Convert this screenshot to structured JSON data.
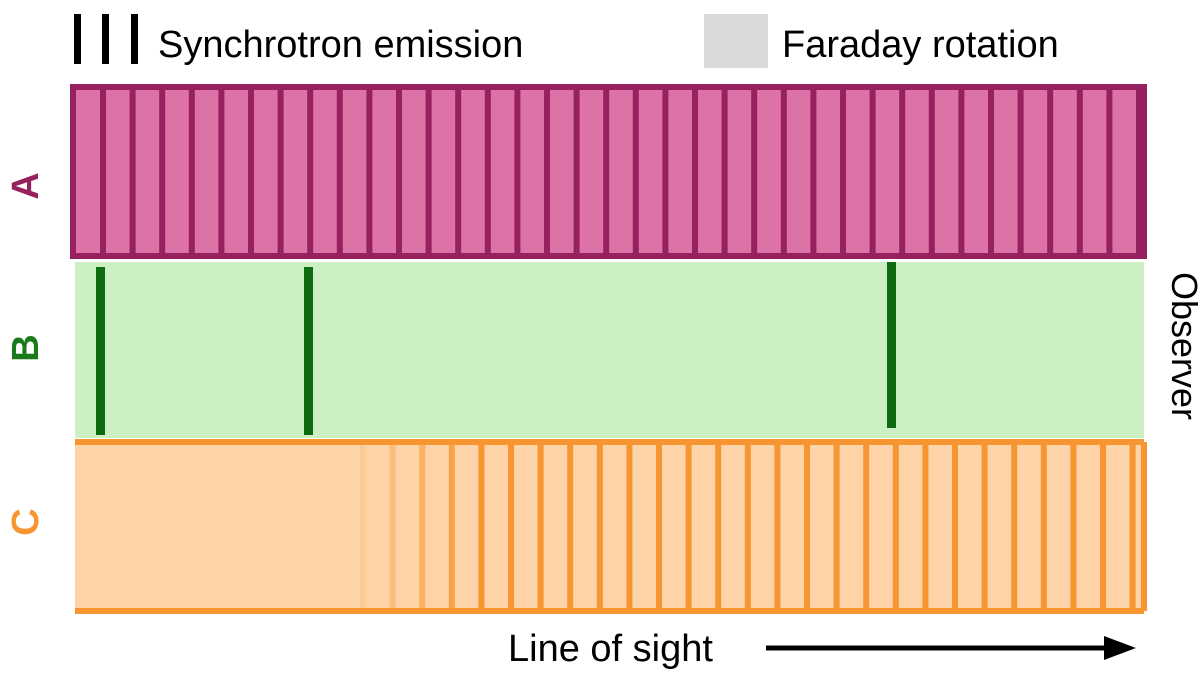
{
  "legend": {
    "synchrotron_label": "Synchrotron emission",
    "faraday_label": "Faraday rotation"
  },
  "panels": {
    "a_label": "A",
    "b_label": "B",
    "c_label": "C"
  },
  "observer_label": "Observer",
  "axis": {
    "line_of_sight_label": "Line of sight"
  },
  "colors": {
    "a_fill": "#dc72a6",
    "a_stroke": "#97205f",
    "b_fill": "#ccf0c3",
    "b_line": "#0e6b10",
    "c_fill": "#fdd3a7",
    "c_stroke": "#f79630",
    "legend_gray": "#d9d9d9",
    "black": "#000000"
  }
}
